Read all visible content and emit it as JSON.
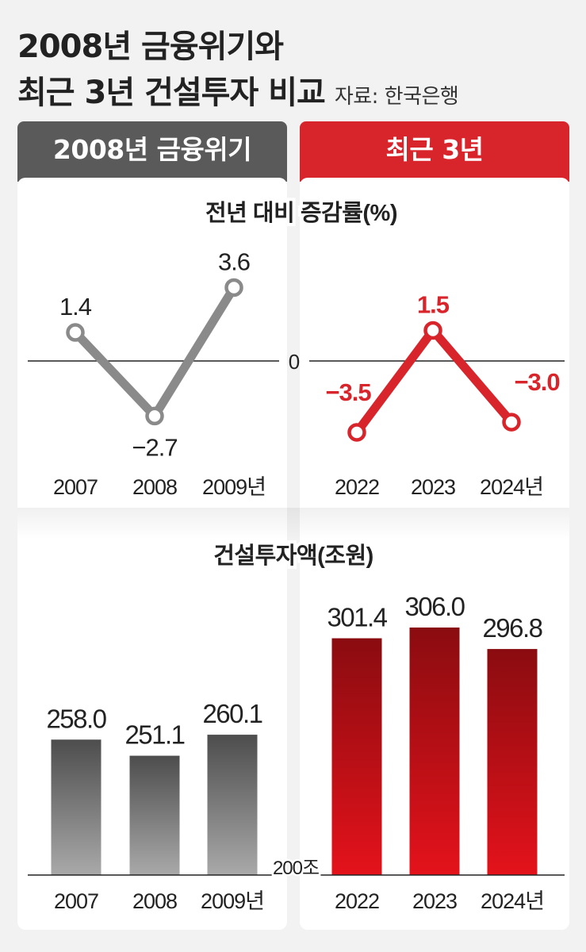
{
  "header": {
    "title_line1": "2008년 금융위기와",
    "title_line2": "최근 3년 건설투자 비교",
    "source": "자료: 한국은행"
  },
  "panels": {
    "left_label": "2008년 금융위기",
    "right_label": "최근 3년"
  },
  "colors": {
    "gray_panel": "#5a5a5a",
    "red_panel": "#d8252c",
    "gray_line": "#8a8a8a",
    "red_line": "#d8252c"
  },
  "chart_data": [
    {
      "type": "line",
      "title": "전년 대비 증감률(%)",
      "zero_label": "0",
      "series": [
        {
          "x": [
            "2007",
            "2008",
            "2009년"
          ],
          "values": [
            1.4,
            -2.7,
            3.6
          ],
          "labels": [
            "1.4",
            "−2.7",
            "3.6"
          ]
        },
        {
          "x": [
            "2022",
            "2023",
            "2024년"
          ],
          "values": [
            -3.5,
            1.5,
            -3.0
          ],
          "labels": [
            "−3.5",
            "1.5",
            "−3.0"
          ]
        }
      ]
    },
    {
      "type": "bar",
      "title": "건설투자액(조원)",
      "baseline_label": "200조",
      "ylim": [
        200,
        310
      ],
      "series": [
        {
          "categories": [
            "2007",
            "2008",
            "2009년"
          ],
          "values": [
            258.0,
            251.1,
            260.1
          ],
          "labels": [
            "258.0",
            "251.1",
            "260.1"
          ]
        },
        {
          "categories": [
            "2022",
            "2023",
            "2024년"
          ],
          "values": [
            301.4,
            306.0,
            296.8
          ],
          "labels": [
            "301.4",
            "306.0",
            "296.8"
          ]
        }
      ]
    }
  ]
}
